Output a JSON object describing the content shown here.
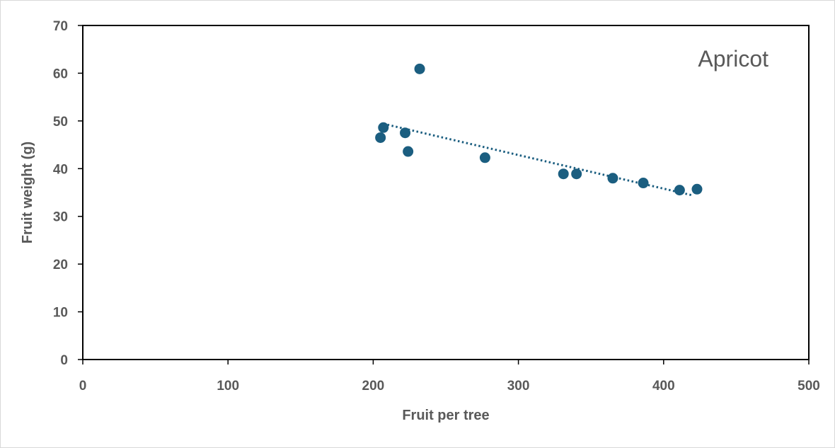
{
  "chart_data": {
    "type": "scatter",
    "title": "",
    "annotation": "Apricot",
    "xlabel": "Fruit per tree",
    "ylabel": "Fruit weight  (g)",
    "xlim": [
      0,
      500
    ],
    "ylim": [
      0,
      70
    ],
    "x_ticks": [
      "0",
      "100",
      "200",
      "300",
      "400",
      "500"
    ],
    "y_ticks": [
      "0",
      "10",
      "20",
      "30",
      "40",
      "50",
      "60",
      "70"
    ],
    "grid": false,
    "legend": "none",
    "marker_color": "#1b5e80",
    "trendline": {
      "type": "linear",
      "style": "dotted",
      "color": "#1b5e80",
      "points": [
        [
          207,
          49.4
        ],
        [
          420,
          34.4
        ]
      ]
    },
    "series": [
      {
        "x": [
          205,
          207,
          222,
          224,
          232,
          277,
          331,
          340,
          365,
          386,
          411,
          423
        ],
        "y": [
          46.5,
          48.6,
          47.5,
          43.6,
          60.9,
          42.3,
          38.9,
          38.9,
          38.0,
          37.0,
          35.5,
          35.7
        ]
      }
    ]
  }
}
